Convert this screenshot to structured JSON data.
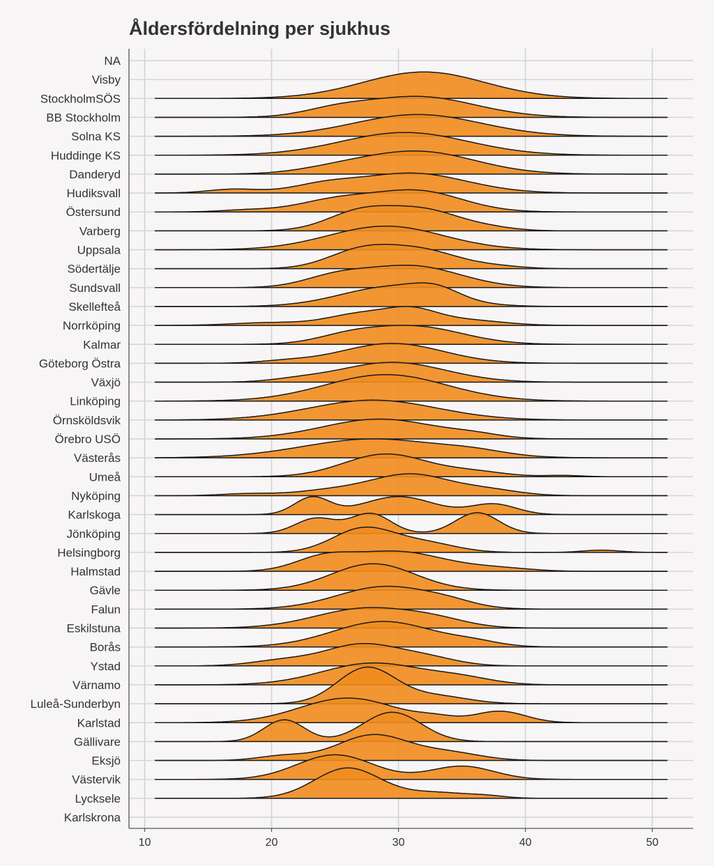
{
  "chart_data": {
    "type": "ridgeline",
    "title": "Åldersfördelning per sjukhus",
    "xlabel": "",
    "ylabel": "",
    "xlim": [
      9.0,
      53.2
    ],
    "x_ticks": [
      10,
      20,
      30,
      40,
      50
    ],
    "density_range": [
      10.8,
      51.2
    ],
    "grid": true,
    "fill_color": "#f08c1e",
    "categories_top_to_bottom": [
      "NA",
      "Visby",
      "StockholmSÖS",
      "BB Stockholm",
      "Solna KS",
      "Huddinge KS",
      "Danderyd",
      "Hudiksvall",
      "Östersund",
      "Varberg",
      "Uppsala",
      "Södertälje",
      "Sundsvall",
      "Skellefteå",
      "Norrköping",
      "Kalmar",
      "Göteborg Östra",
      "Växjö",
      "Linköping",
      "Örnsköldsvik",
      "Örebro USÖ",
      "Västerås",
      "Umeå",
      "Nyköping",
      "Karlskoga",
      "Jönköping",
      "Helsingborg",
      "Halmstad",
      "Gävle",
      "Falun",
      "Eskilstuna",
      "Borås",
      "Ystad",
      "Värnamo",
      "Luleå-Sunderbyn",
      "Karlstad",
      "Gällivare",
      "Eksjö",
      "Västervik",
      "Lycksele",
      "Karlskrona"
    ],
    "series": [
      {
        "name": "StockholmSÖS",
        "components": [
          {
            "m": 32,
            "s": 4.8,
            "a": 1.4
          }
        ]
      },
      {
        "name": "BB Stockholm",
        "components": [
          {
            "m": 31.5,
            "s": 4.5,
            "a": 1.1
          },
          {
            "m": 25,
            "s": 2.5,
            "a": 0.3
          }
        ]
      },
      {
        "name": "Solna KS",
        "components": [
          {
            "m": 31.5,
            "s": 5,
            "a": 1.15
          }
        ]
      },
      {
        "name": "Huddinge KS",
        "components": [
          {
            "m": 30.5,
            "s": 5,
            "a": 1.2
          }
        ]
      },
      {
        "name": "Danderyd",
        "components": [
          {
            "m": 31.5,
            "s": 4.5,
            "a": 1.2
          },
          {
            "m": 25,
            "s": 3,
            "a": 0.2
          }
        ]
      },
      {
        "name": "Hudiksvall",
        "components": [
          {
            "m": 31,
            "s": 4.3,
            "a": 1.05
          },
          {
            "m": 24,
            "s": 2.5,
            "a": 0.35
          },
          {
            "m": 17,
            "s": 2,
            "a": 0.2
          }
        ]
      },
      {
        "name": "Östersund",
        "components": [
          {
            "m": 31.5,
            "s": 3.5,
            "a": 1.1
          },
          {
            "m": 25,
            "s": 3,
            "a": 0.6
          },
          {
            "m": 18,
            "s": 2,
            "a": 0.1
          }
        ]
      },
      {
        "name": "Varberg",
        "components": [
          {
            "m": 27,
            "s": 2.6,
            "a": 1.0
          },
          {
            "m": 32,
            "s": 2.8,
            "a": 1.05
          },
          {
            "m": 37,
            "s": 2.2,
            "a": 0.15
          }
        ]
      },
      {
        "name": "Uppsala",
        "components": [
          {
            "m": 29,
            "s": 4.5,
            "a": 1.25
          }
        ]
      },
      {
        "name": "Södertälje",
        "components": [
          {
            "m": 27,
            "s": 2.6,
            "a": 0.9
          },
          {
            "m": 31.8,
            "s": 3,
            "a": 0.95
          },
          {
            "m": 38,
            "s": 2,
            "a": 0.1
          }
        ]
      },
      {
        "name": "Sundsvall",
        "components": [
          {
            "m": 31,
            "s": 3.8,
            "a": 1.15
          },
          {
            "m": 25,
            "s": 2.5,
            "a": 0.5
          }
        ]
      },
      {
        "name": "Skellefteå",
        "components": [
          {
            "m": 29.5,
            "s": 4,
            "a": 1.05
          },
          {
            "m": 33,
            "s": 1.8,
            "a": 0.45
          }
        ]
      },
      {
        "name": "Norrköping",
        "components": [
          {
            "m": 27,
            "s": 2.5,
            "a": 0.6
          },
          {
            "m": 31,
            "s": 2,
            "a": 0.7
          },
          {
            "m": 35,
            "s": 3,
            "a": 0.3
          },
          {
            "m": 20,
            "s": 3,
            "a": 0.15
          }
        ]
      },
      {
        "name": "Kalmar",
        "components": [
          {
            "m": 31.2,
            "s": 3.8,
            "a": 0.95
          },
          {
            "m": 26,
            "s": 2.5,
            "a": 0.35
          }
        ]
      },
      {
        "name": "Göteborg Östra",
        "components": [
          {
            "m": 29.5,
            "s": 4,
            "a": 1.05
          },
          {
            "m": 21,
            "s": 2,
            "a": 0.1
          }
        ]
      },
      {
        "name": "Växjö",
        "components": [
          {
            "m": 29.5,
            "s": 4.2,
            "a": 1.05
          },
          {
            "m": 22,
            "s": 2,
            "a": 0.1
          }
        ]
      },
      {
        "name": "Linköping",
        "components": [
          {
            "m": 29,
            "s": 4.8,
            "a": 1.4
          }
        ]
      },
      {
        "name": "Örnsköldsvik",
        "components": [
          {
            "m": 28,
            "s": 5,
            "a": 1.05
          }
        ]
      },
      {
        "name": "Örebro USÖ",
        "components": [
          {
            "m": 28.5,
            "s": 4.5,
            "a": 1.05
          },
          {
            "m": 36,
            "s": 2,
            "a": 0.15
          }
        ]
      },
      {
        "name": "Västerås",
        "components": [
          {
            "m": 28,
            "s": 5.5,
            "a": 1.0
          },
          {
            "m": 36,
            "s": 2.5,
            "a": 0.2
          }
        ]
      },
      {
        "name": "Umeå",
        "components": [
          {
            "m": 29,
            "s": 3.3,
            "a": 1.2
          },
          {
            "m": 36,
            "s": 2.5,
            "a": 0.25
          },
          {
            "m": 43,
            "s": 1.5,
            "a": 0.07
          }
        ]
      },
      {
        "name": "Nyköping",
        "components": [
          {
            "m": 31,
            "s": 3,
            "a": 1.1
          },
          {
            "m": 25,
            "s": 3,
            "a": 0.3
          },
          {
            "m": 37,
            "s": 2.5,
            "a": 0.3
          },
          {
            "m": 18,
            "s": 2,
            "a": 0.1
          }
        ]
      },
      {
        "name": "Karlskoga",
        "components": [
          {
            "m": 23.2,
            "s": 1.4,
            "a": 0.9
          },
          {
            "m": 30,
            "s": 2.8,
            "a": 0.95
          },
          {
            "m": 37.5,
            "s": 1.8,
            "a": 0.55
          }
        ]
      },
      {
        "name": "Jönköping",
        "components": [
          {
            "m": 23.5,
            "s": 1.6,
            "a": 0.8
          },
          {
            "m": 27.8,
            "s": 1.6,
            "a": 1.05
          },
          {
            "m": 36.2,
            "s": 1.7,
            "a": 1.1
          }
        ]
      },
      {
        "name": "Helsingborg",
        "components": [
          {
            "m": 27.2,
            "s": 2.4,
            "a": 1.25
          },
          {
            "m": 32,
            "s": 2.5,
            "a": 0.5
          },
          {
            "m": 46,
            "s": 1.5,
            "a": 0.12
          }
        ]
      },
      {
        "name": "Halmstad",
        "components": [
          {
            "m": 29.8,
            "s": 3.8,
            "a": 1.05
          },
          {
            "m": 24,
            "s": 2.2,
            "a": 0.6
          },
          {
            "m": 38,
            "s": 2.5,
            "a": 0.15
          }
        ]
      },
      {
        "name": "Gävle",
        "components": [
          {
            "m": 28,
            "s": 3.3,
            "a": 1.4
          }
        ]
      },
      {
        "name": "Falun",
        "components": [
          {
            "m": 29,
            "s": 3.8,
            "a": 1.2
          },
          {
            "m": 34,
            "s": 2,
            "a": 0.2
          }
        ]
      },
      {
        "name": "Eskilstuna",
        "components": [
          {
            "m": 27.5,
            "s": 4,
            "a": 1.05
          },
          {
            "m": 33,
            "s": 2.5,
            "a": 0.3
          }
        ]
      },
      {
        "name": "Borås",
        "components": [
          {
            "m": 28.8,
            "s": 4,
            "a": 1.35
          },
          {
            "m": 36,
            "s": 2,
            "a": 0.2
          }
        ]
      },
      {
        "name": "Ystad",
        "components": [
          {
            "m": 27,
            "s": 2.8,
            "a": 1.1
          },
          {
            "m": 32,
            "s": 2.5,
            "a": 0.45
          },
          {
            "m": 21,
            "s": 2.5,
            "a": 0.3
          }
        ]
      },
      {
        "name": "Värnamo",
        "components": [
          {
            "m": 28,
            "s": 4,
            "a": 1.15
          },
          {
            "m": 35,
            "s": 2.5,
            "a": 0.3
          }
        ]
      },
      {
        "name": "Luleå-Sunderbyn",
        "components": [
          {
            "m": 27.5,
            "s": 2.3,
            "a": 1.9
          },
          {
            "m": 33,
            "s": 2.5,
            "a": 0.4
          }
        ]
      },
      {
        "name": "Karlstad",
        "components": [
          {
            "m": 26,
            "s": 3.8,
            "a": 1.3
          },
          {
            "m": 38,
            "s": 2,
            "a": 0.6
          },
          {
            "m": 33,
            "s": 1.5,
            "a": 0.2
          }
        ]
      },
      {
        "name": "Gällivare",
        "components": [
          {
            "m": 21,
            "s": 1.6,
            "a": 1.15
          },
          {
            "m": 29.5,
            "s": 2.3,
            "a": 1.55
          }
        ]
      },
      {
        "name": "Eksjö",
        "components": [
          {
            "m": 28,
            "s": 2.8,
            "a": 1.35
          },
          {
            "m": 34,
            "s": 2.5,
            "a": 0.4
          },
          {
            "m": 21,
            "s": 2,
            "a": 0.25
          }
        ]
      },
      {
        "name": "Västervik",
        "components": [
          {
            "m": 25,
            "s": 3,
            "a": 1.3
          },
          {
            "m": 35,
            "s": 2.5,
            "a": 0.7
          }
        ]
      },
      {
        "name": "Lycksele",
        "components": [
          {
            "m": 26,
            "s": 2.6,
            "a": 1.6
          },
          {
            "m": 33,
            "s": 2.5,
            "a": 0.3
          },
          {
            "m": 37,
            "s": 1.5,
            "a": 0.1
          }
        ]
      }
    ]
  }
}
